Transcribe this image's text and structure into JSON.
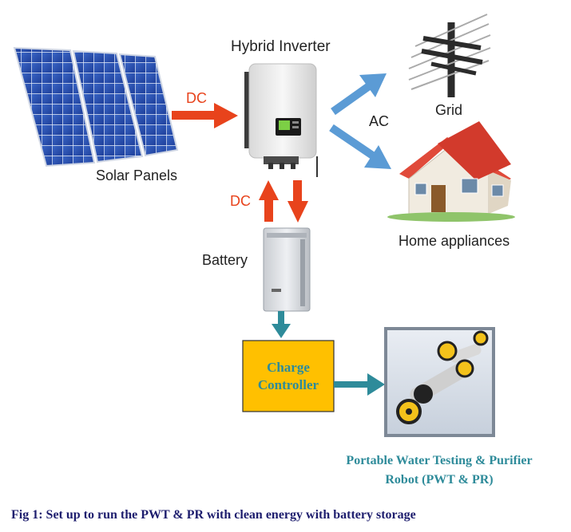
{
  "nodes": {
    "solar_panels": {
      "label": "Solar Panels"
    },
    "inverter": {
      "label": "Hybrid Inverter"
    },
    "grid": {
      "label": "Grid"
    },
    "home": {
      "label": "Home appliances"
    },
    "battery": {
      "label": "Battery"
    },
    "charge_controller": {
      "line1": "Charge",
      "line2": "Controller"
    },
    "robot": {
      "line1": "Portable Water Testing & Purifier",
      "line2": "Robot (PWT &  PR)"
    }
  },
  "edges": {
    "solar_to_inverter": {
      "label": "DC"
    },
    "inverter_battery": {
      "label": "DC"
    },
    "inverter_outputs": {
      "label": "AC"
    }
  },
  "caption": "Fig 1: Set up to run the PWT &  PR with clean energy with battery storage",
  "colors": {
    "dc_arrow": "#e8431c",
    "ac_arrow": "#5b9bd5",
    "controller_fill": "#ffc000",
    "controller_text": "#2e8b9a",
    "teal_arrow": "#2e8b9a"
  }
}
